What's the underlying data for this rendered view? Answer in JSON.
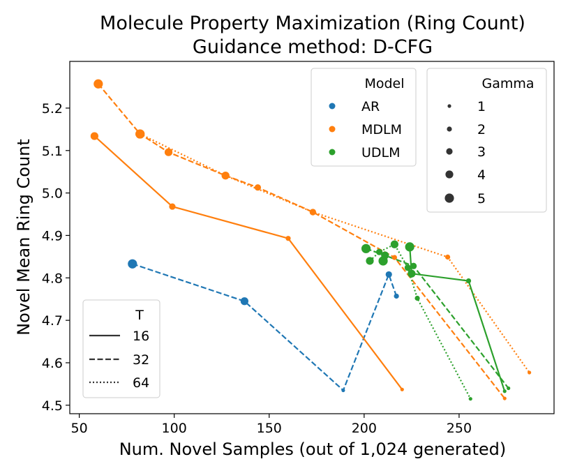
{
  "chart_data": {
    "type": "line",
    "title_line1": "Molecule Property Maximization (Ring Count)",
    "title_line2": "Guidance method: D-CFG",
    "xlabel": "Num. Novel Samples (out of 1,024 generated)",
    "ylabel": "Novel Mean Ring Count",
    "xlim": [
      45,
      300
    ],
    "ylim": [
      4.48,
      5.31
    ],
    "x_ticks": [
      50,
      100,
      150,
      200,
      250
    ],
    "y_ticks": [
      4.5,
      4.6,
      4.7,
      4.8,
      4.9,
      5.0,
      5.1,
      5.2
    ],
    "x_tick_labels": [
      "50",
      "100",
      "150",
      "200",
      "250"
    ],
    "y_tick_labels": [
      "4.5",
      "4.6",
      "4.7",
      "4.8",
      "4.9",
      "5.0",
      "5.1",
      "5.2"
    ],
    "colors": {
      "AR": "#1f77b4",
      "MDLM": "#ff7f0e",
      "UDLM": "#2ca02c"
    },
    "series": [
      {
        "model": "AR",
        "T": 32,
        "points": [
          {
            "x": 78,
            "y": 4.833,
            "gamma": 5
          },
          {
            "x": 137,
            "y": 4.745,
            "gamma": 4
          },
          {
            "x": 189,
            "y": 4.535,
            "gamma": 1
          },
          {
            "x": 213,
            "y": 4.808,
            "gamma": 3
          },
          {
            "x": 217,
            "y": 4.757,
            "gamma": 2
          }
        ]
      },
      {
        "model": "MDLM",
        "T": 16,
        "points": [
          {
            "x": 58,
            "y": 5.134,
            "gamma": 4
          },
          {
            "x": 99,
            "y": 4.968,
            "gamma": 3
          },
          {
            "x": 160,
            "y": 4.893,
            "gamma": 2
          },
          {
            "x": 220,
            "y": 4.537,
            "gamma": 1
          }
        ]
      },
      {
        "model": "MDLM",
        "T": 32,
        "points": [
          {
            "x": 60,
            "y": 5.257,
            "gamma": 5
          },
          {
            "x": 82,
            "y": 5.139,
            "gamma": 5
          },
          {
            "x": 97,
            "y": 5.096,
            "gamma": 4
          },
          {
            "x": 127,
            "y": 5.041,
            "gamma": 4
          },
          {
            "x": 144,
            "y": 5.013,
            "gamma": 3
          },
          {
            "x": 173,
            "y": 4.955,
            "gamma": 3
          },
          {
            "x": 216,
            "y": 4.848,
            "gamma": 2
          },
          {
            "x": 274,
            "y": 4.516,
            "gamma": 1
          }
        ]
      },
      {
        "model": "MDLM",
        "T": 64,
        "points": [
          {
            "x": 82,
            "y": 5.139,
            "gamma": 5
          },
          {
            "x": 127,
            "y": 5.041,
            "gamma": 4
          },
          {
            "x": 173,
            "y": 4.955,
            "gamma": 3
          },
          {
            "x": 244,
            "y": 4.849,
            "gamma": 2
          },
          {
            "x": 287,
            "y": 4.577,
            "gamma": 1
          }
        ]
      },
      {
        "model": "UDLM",
        "T": 16,
        "points": [
          {
            "x": 224,
            "y": 4.873,
            "gamma": 5
          },
          {
            "x": 225,
            "y": 4.81,
            "gamma": 4
          },
          {
            "x": 255,
            "y": 4.793,
            "gamma": 2
          },
          {
            "x": 274,
            "y": 4.533,
            "gamma": 1
          }
        ]
      },
      {
        "model": "UDLM",
        "T": 32,
        "points": [
          {
            "x": 201,
            "y": 4.869,
            "gamma": 5
          },
          {
            "x": 211,
            "y": 4.853,
            "gamma": 4
          },
          {
            "x": 226,
            "y": 4.828,
            "gamma": 3
          },
          {
            "x": 276,
            "y": 4.54,
            "gamma": 1
          }
        ]
      },
      {
        "model": "UDLM",
        "T": 64,
        "points": [
          {
            "x": 203,
            "y": 4.84,
            "gamma": 4
          },
          {
            "x": 208,
            "y": 4.861,
            "gamma": 3
          },
          {
            "x": 216,
            "y": 4.879,
            "gamma": 4
          },
          {
            "x": 223,
            "y": 4.824,
            "gamma": 3
          },
          {
            "x": 228,
            "y": 4.752,
            "gamma": 2
          },
          {
            "x": 256,
            "y": 4.515,
            "gamma": 1
          }
        ]
      }
    ],
    "extra_points": [
      {
        "model": "UDLM",
        "x": 210,
        "y": 4.84,
        "gamma": 5
      }
    ],
    "legend_model": {
      "title": "Model",
      "entries": [
        "AR",
        "MDLM",
        "UDLM"
      ],
      "placement": "top-right"
    },
    "legend_gamma": {
      "title": "Gamma",
      "entries": [
        "1",
        "2",
        "3",
        "4",
        "5"
      ],
      "placement": "top-right"
    },
    "legend_T": {
      "title": "T",
      "entries": [
        "16",
        "32",
        "64"
      ],
      "placement": "lower-left"
    }
  }
}
